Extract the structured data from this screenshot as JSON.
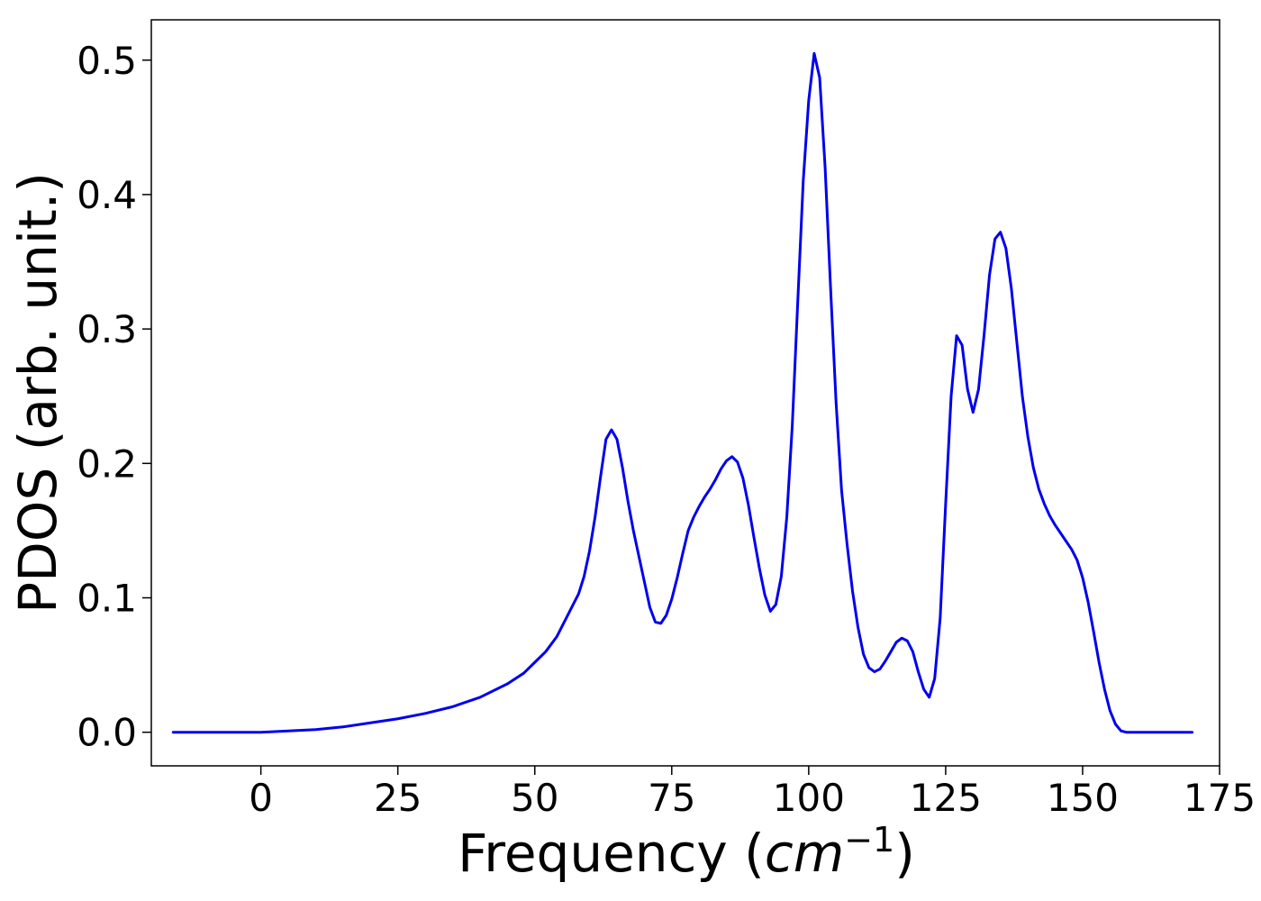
{
  "chart_data": {
    "type": "line",
    "title": "",
    "xlabel_main": "Frequency (",
    "xlabel_unit": "cm",
    "xlabel_exp": "−1",
    "xlabel_close": ")",
    "ylabel": "PDOS (arb. unit.)",
    "xlim": [
      -20,
      175
    ],
    "ylim": [
      -0.025,
      0.53
    ],
    "x_ticks": [
      0,
      25,
      50,
      75,
      100,
      125,
      150,
      175
    ],
    "x_tick_labels": [
      "0",
      "25",
      "50",
      "75",
      "100",
      "125",
      "150",
      "175"
    ],
    "y_ticks": [
      0.0,
      0.1,
      0.2,
      0.3,
      0.4,
      0.5
    ],
    "y_tick_labels": [
      "0.0",
      "0.1",
      "0.2",
      "0.3",
      "0.4",
      "0.5"
    ],
    "grid": false,
    "line_color": "#0000ee",
    "series": [
      {
        "x": [
          -16,
          0,
          5,
          10,
          15,
          20,
          25,
          30,
          35,
          40,
          45,
          48,
          50,
          52,
          54,
          56,
          58,
          59,
          60,
          61,
          62,
          63,
          64,
          65,
          66,
          67,
          68,
          69,
          70,
          71,
          72,
          73,
          74,
          75,
          76,
          77,
          78,
          79,
          80,
          81,
          82,
          83,
          84,
          85,
          86,
          87,
          88,
          89,
          90,
          91,
          92,
          93,
          94,
          95,
          96,
          97,
          98,
          99,
          100,
          101,
          102,
          103,
          104,
          105,
          106,
          107,
          108,
          109,
          110,
          111,
          112,
          113,
          114,
          115,
          116,
          117,
          118,
          119,
          120,
          121,
          122,
          123,
          124,
          125,
          126,
          127,
          128,
          129,
          130,
          131,
          132,
          133,
          134,
          135,
          136,
          137,
          138,
          139,
          140,
          141,
          142,
          143,
          144,
          145,
          146,
          147,
          148,
          149,
          150,
          151,
          152,
          153,
          154,
          155,
          156,
          157,
          158,
          160,
          170
        ],
        "y": [
          0,
          0,
          0.001,
          0.002,
          0.004,
          0.007,
          0.01,
          0.014,
          0.019,
          0.026,
          0.036,
          0.044,
          0.052,
          0.06,
          0.071,
          0.087,
          0.103,
          0.116,
          0.135,
          0.16,
          0.19,
          0.218,
          0.225,
          0.218,
          0.197,
          0.172,
          0.15,
          0.131,
          0.112,
          0.093,
          0.082,
          0.081,
          0.087,
          0.099,
          0.115,
          0.133,
          0.15,
          0.16,
          0.168,
          0.175,
          0.181,
          0.188,
          0.196,
          0.202,
          0.205,
          0.201,
          0.189,
          0.169,
          0.145,
          0.122,
          0.102,
          0.09,
          0.095,
          0.116,
          0.16,
          0.228,
          0.32,
          0.41,
          0.47,
          0.505,
          0.487,
          0.42,
          0.33,
          0.245,
          0.18,
          0.14,
          0.105,
          0.078,
          0.058,
          0.048,
          0.045,
          0.047,
          0.053,
          0.06,
          0.067,
          0.07,
          0.068,
          0.06,
          0.045,
          0.032,
          0.026,
          0.04,
          0.085,
          0.17,
          0.25,
          0.295,
          0.288,
          0.255,
          0.238,
          0.255,
          0.295,
          0.34,
          0.367,
          0.372,
          0.36,
          0.33,
          0.29,
          0.25,
          0.22,
          0.197,
          0.181,
          0.17,
          0.161,
          0.154,
          0.148,
          0.142,
          0.136,
          0.128,
          0.115,
          0.097,
          0.075,
          0.052,
          0.032,
          0.016,
          0.006,
          0.001,
          0,
          0,
          0
        ]
      }
    ]
  }
}
